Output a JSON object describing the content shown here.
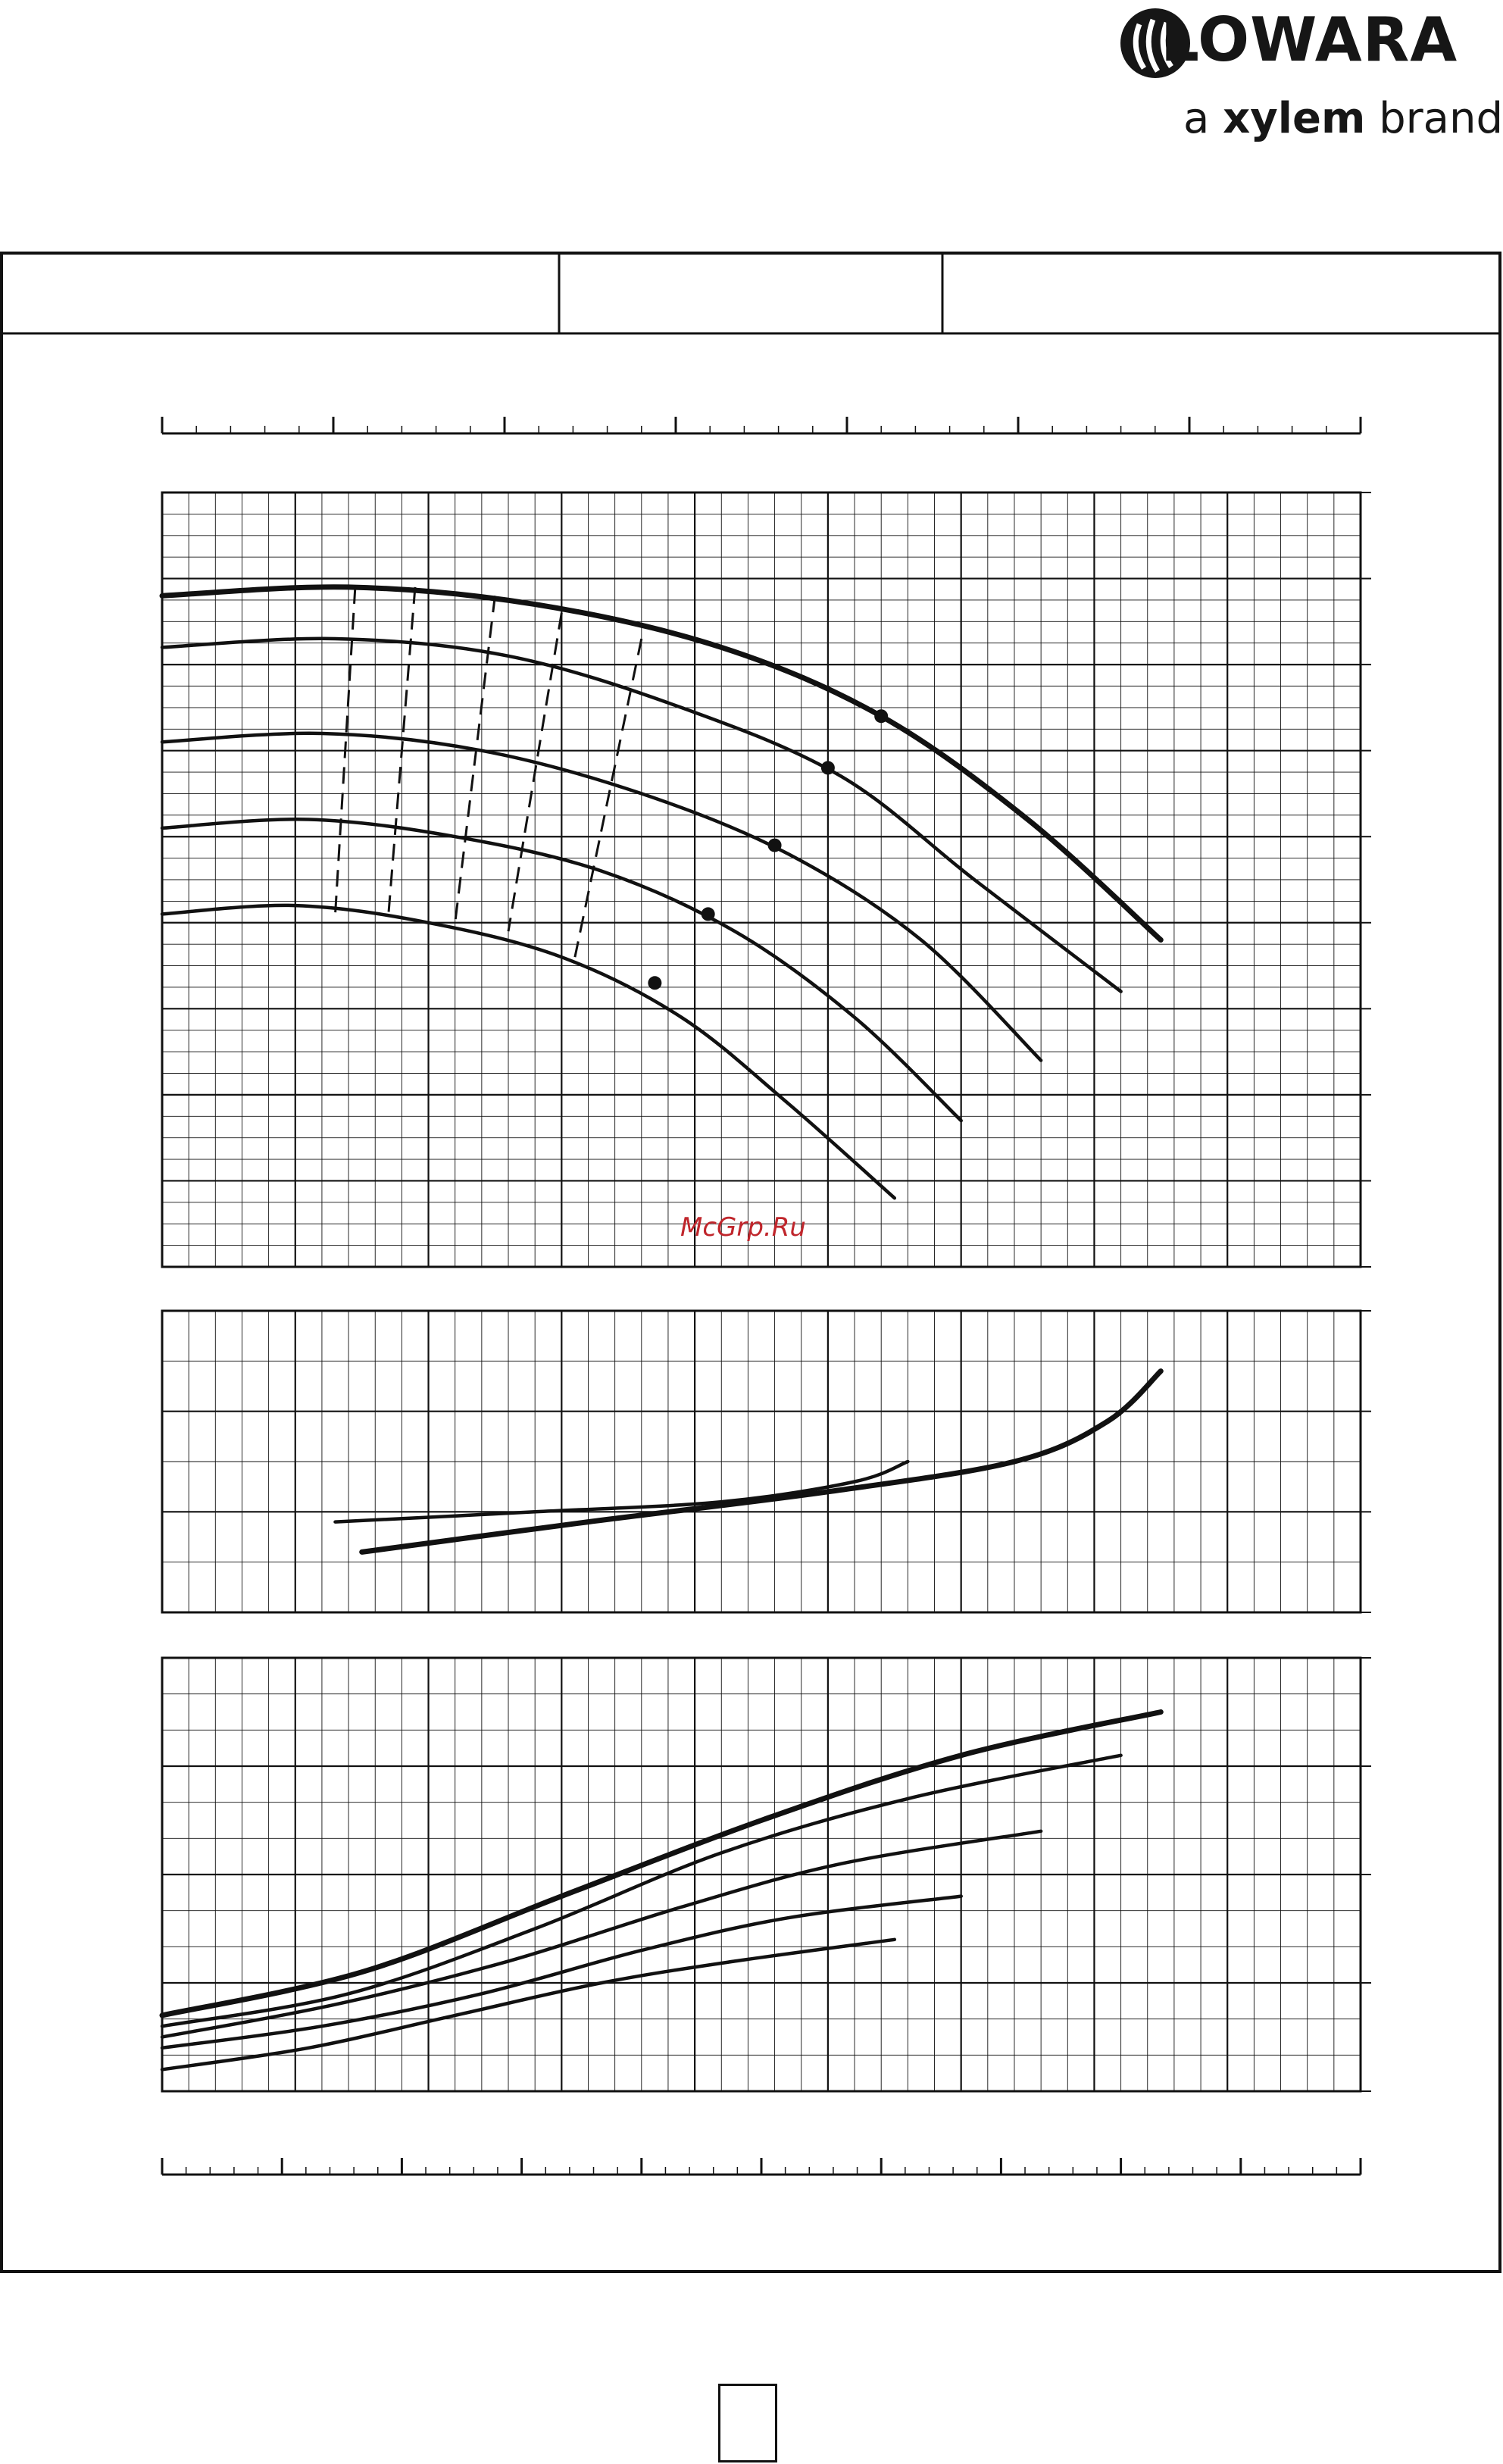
{
  "brand": {
    "name": "LOWARA",
    "tagline_prefix": "a",
    "tagline_brand": "xylem",
    "tagline_suffix": "brand"
  },
  "header": {
    "cells": [
      "",
      "",
      ""
    ]
  },
  "watermark": "McGrp.Ru",
  "page_number": "",
  "colors": {
    "ink": "#111111",
    "watermark": "#c0262c"
  },
  "chart_data": [
    {
      "type": "line",
      "panel": "head-capacity",
      "xlim": [
        0,
        9
      ],
      "ylim": [
        0,
        9
      ],
      "series": [
        {
          "style": "thick",
          "x": [
            0,
            1.4,
            2.8,
            4.2,
            5.4,
            6.5,
            7.5
          ],
          "y": [
            7.8,
            7.9,
            7.7,
            7.2,
            6.4,
            5.2,
            3.8
          ]
        },
        {
          "style": "solid",
          "x": [
            0,
            1.3,
            2.6,
            3.9,
            5.1,
            6.1,
            7.2
          ],
          "y": [
            7.2,
            7.3,
            7.1,
            6.5,
            5.7,
            4.5,
            3.2
          ]
        },
        {
          "style": "solid",
          "x": [
            0,
            1.2,
            2.4,
            3.6,
            4.7,
            5.7,
            6.6
          ],
          "y": [
            6.1,
            6.2,
            6.0,
            5.5,
            4.8,
            3.8,
            2.4
          ]
        },
        {
          "style": "solid",
          "x": [
            0,
            1.1,
            2.2,
            3.3,
            4.3,
            5.2,
            6.0
          ],
          "y": [
            5.1,
            5.2,
            5.0,
            4.6,
            3.9,
            2.9,
            1.7
          ]
        },
        {
          "style": "solid",
          "x": [
            0,
            1.0,
            2.0,
            3.0,
            3.9,
            4.7,
            5.5
          ],
          "y": [
            4.1,
            4.2,
            4.0,
            3.6,
            2.9,
            1.9,
            0.8
          ]
        }
      ],
      "duty_points": [
        {
          "x": 5.4,
          "y": 6.4
        },
        {
          "x": 5.0,
          "y": 5.8
        },
        {
          "x": 4.6,
          "y": 4.9
        },
        {
          "x": 4.1,
          "y": 4.1
        },
        {
          "x": 3.7,
          "y": 3.3
        }
      ]
    },
    {
      "type": "line",
      "panel": "npsh",
      "xlim": [
        0,
        9
      ],
      "ylim": [
        0,
        3
      ],
      "series": [
        {
          "style": "solid",
          "x": [
            1.3,
            2.8,
            4.2,
            5.2,
            5.6
          ],
          "y": [
            0.9,
            1.0,
            1.1,
            1.3,
            1.5
          ]
        },
        {
          "style": "thick",
          "x": [
            1.5,
            3.2,
            5.0,
            6.4,
            7.1,
            7.5
          ],
          "y": [
            0.6,
            0.9,
            1.2,
            1.5,
            1.9,
            2.4
          ]
        }
      ]
    },
    {
      "type": "line",
      "panel": "power",
      "xlim": [
        0,
        9
      ],
      "ylim": [
        0,
        4
      ],
      "series": [
        {
          "style": "thick",
          "x": [
            0,
            1.5,
            3.0,
            4.5,
            6.0,
            7.5
          ],
          "y": [
            0.7,
            1.1,
            1.8,
            2.5,
            3.1,
            3.5
          ]
        },
        {
          "style": "solid",
          "x": [
            0,
            1.4,
            2.8,
            4.2,
            5.6,
            7.2
          ],
          "y": [
            0.6,
            0.9,
            1.5,
            2.2,
            2.7,
            3.1
          ]
        },
        {
          "style": "solid",
          "x": [
            0,
            1.3,
            2.6,
            3.9,
            5.1,
            6.6
          ],
          "y": [
            0.5,
            0.8,
            1.2,
            1.7,
            2.1,
            2.4
          ]
        },
        {
          "style": "solid",
          "x": [
            0,
            1.2,
            2.4,
            3.6,
            4.7,
            6.0
          ],
          "y": [
            0.4,
            0.6,
            0.9,
            1.3,
            1.6,
            1.8
          ]
        },
        {
          "style": "solid",
          "x": [
            0,
            1.1,
            2.2,
            3.3,
            4.3,
            5.5
          ],
          "y": [
            0.2,
            0.4,
            0.7,
            1.0,
            1.2,
            1.4
          ]
        }
      ]
    }
  ]
}
